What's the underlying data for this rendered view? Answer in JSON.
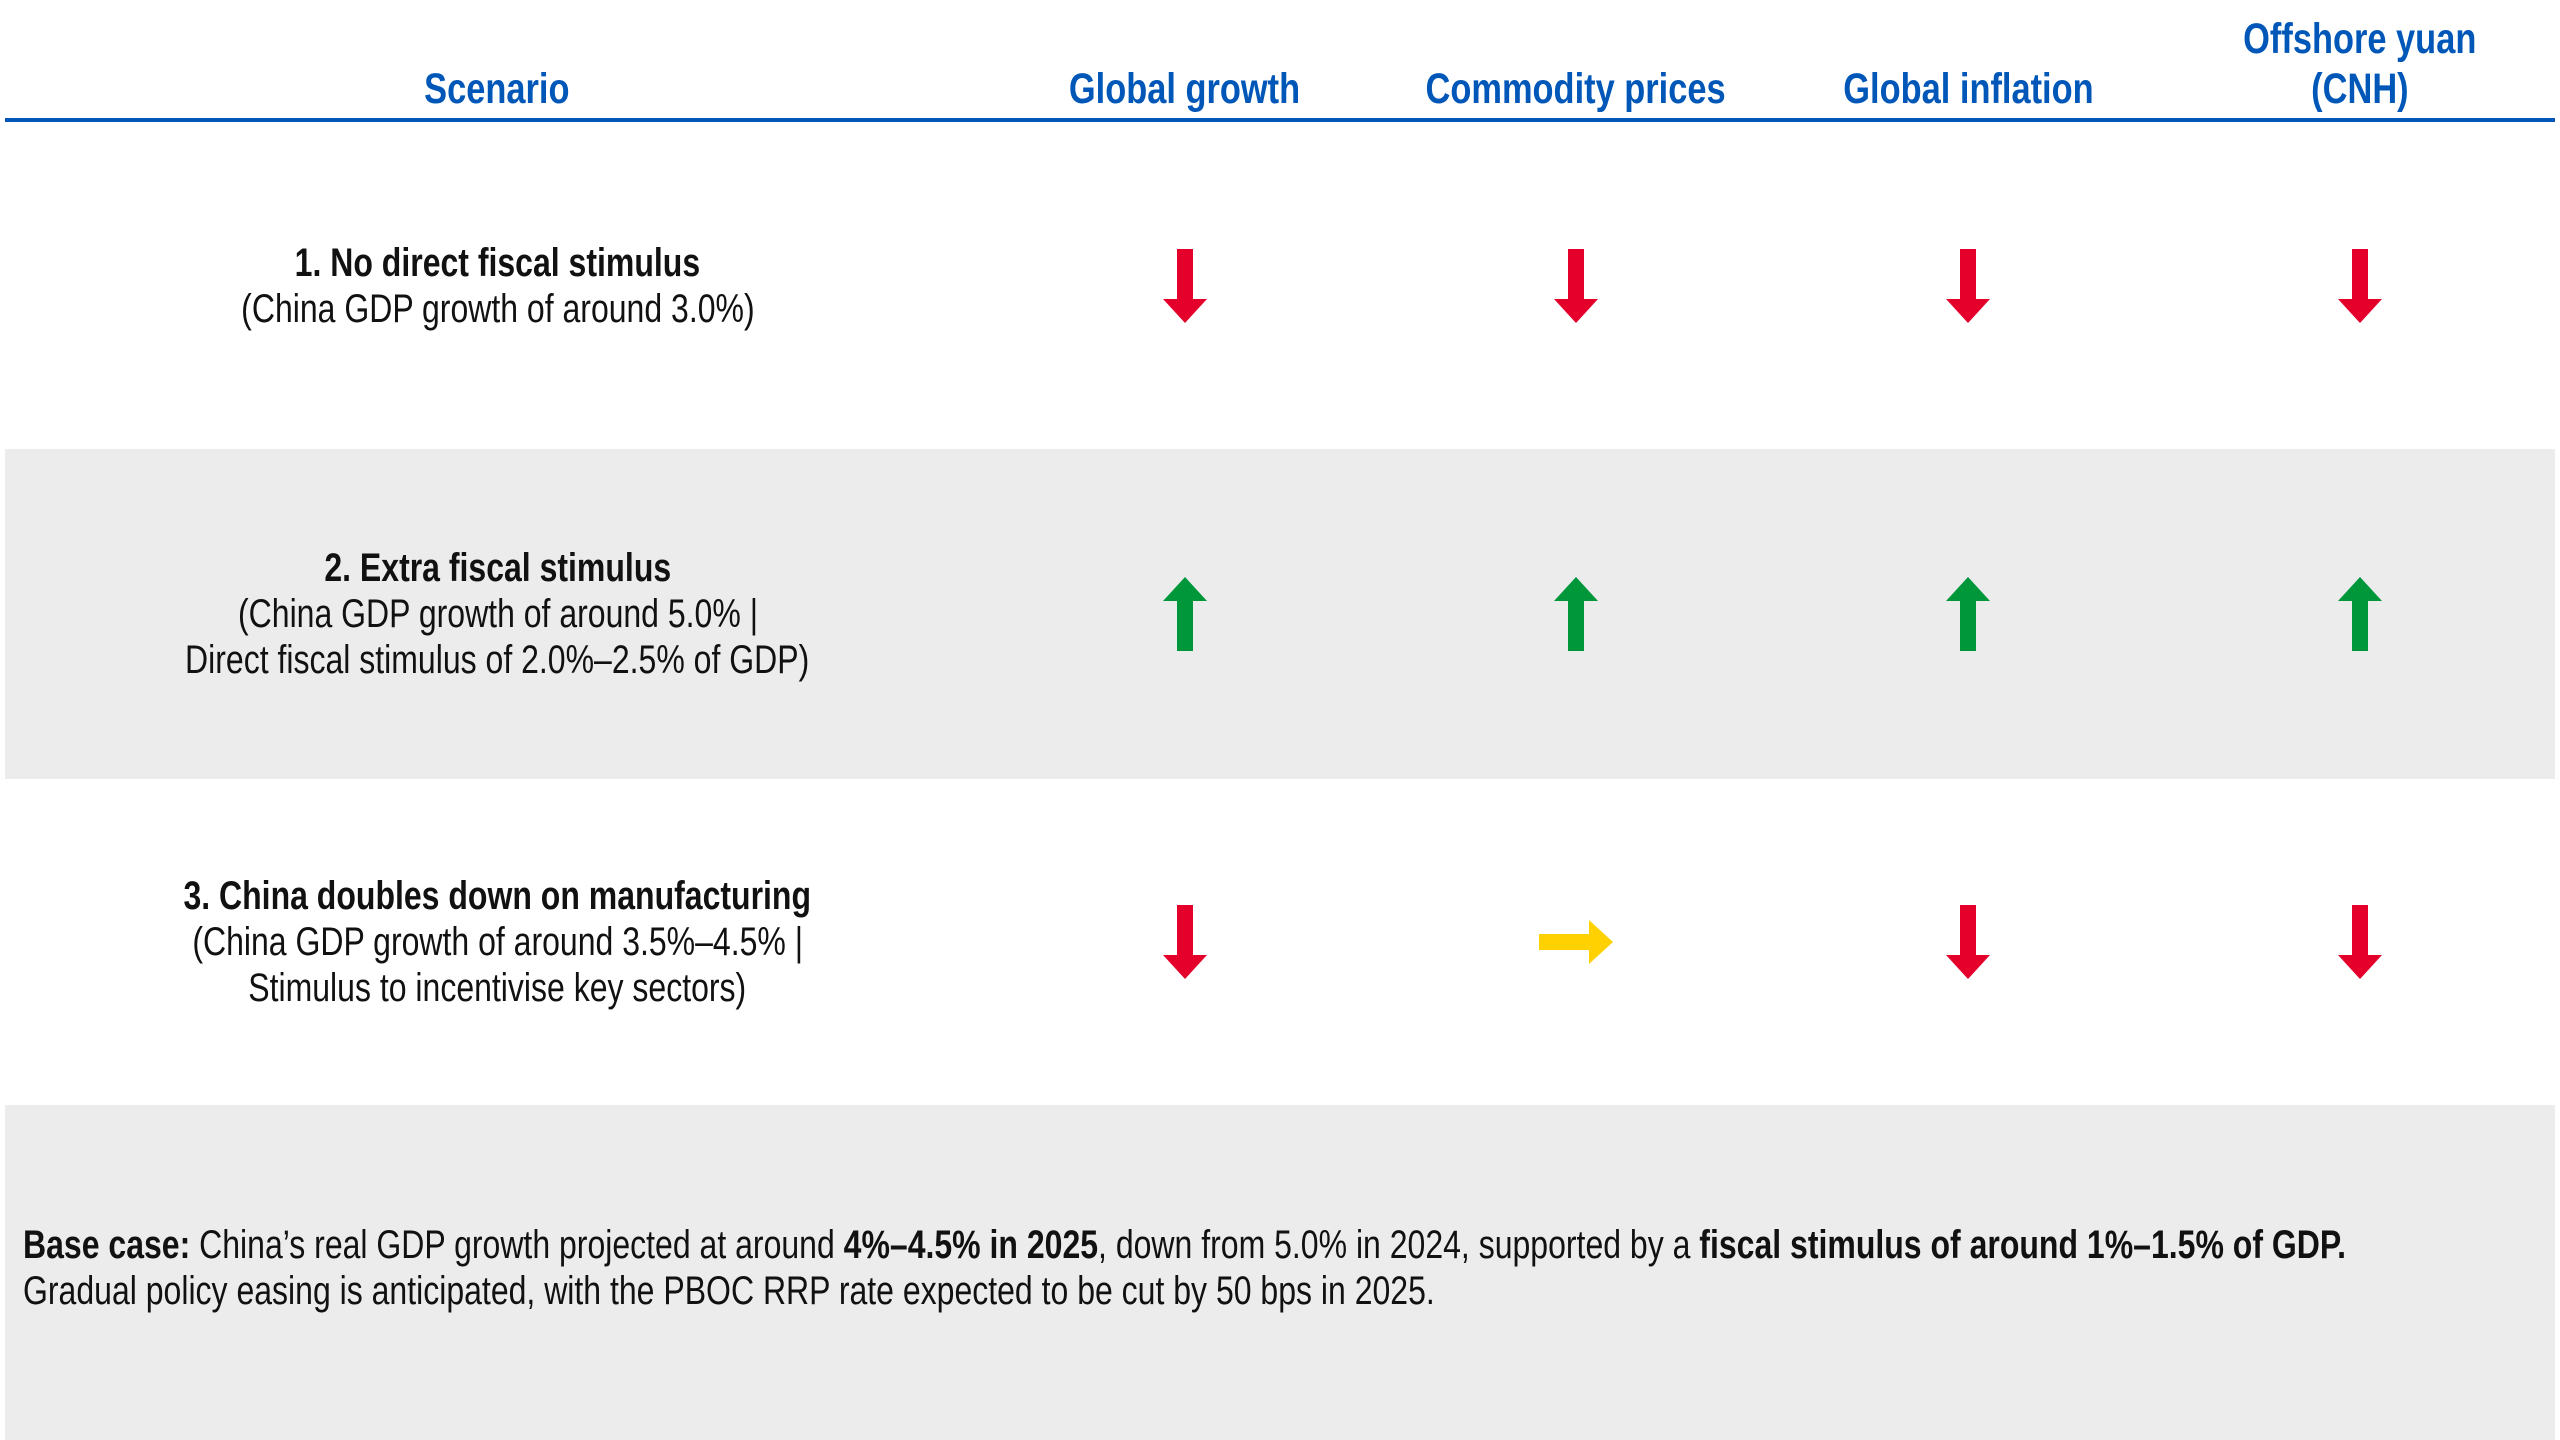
{
  "header": {
    "columns": [
      "Scenario",
      "Global growth",
      "Commodity prices",
      "Global inflation",
      "Offshore yuan (CNH)"
    ],
    "cnh_line1": "Offshore yuan",
    "cnh_line2": "(CNH)"
  },
  "colors": {
    "header_blue": "#0057b8",
    "down": "#e4002b",
    "up": "#00963a",
    "flat": "#ffd100",
    "row_gray": "#ececec"
  },
  "rows": [
    {
      "title": "1. No direct fiscal stimulus",
      "lines": [
        "(China GDP growth of around 3.0%)"
      ],
      "arrows": [
        "arrow-down-icon",
        "arrow-down-icon",
        "arrow-down-icon",
        "arrow-down-icon"
      ]
    },
    {
      "title": "2. Extra fiscal stimulus",
      "lines": [
        "(China GDP growth of around 5.0% |",
        "Direct fiscal stimulus of 2.0%–2.5% of GDP)"
      ],
      "arrows": [
        "arrow-up-icon",
        "arrow-up-icon",
        "arrow-up-icon",
        "arrow-up-icon"
      ]
    },
    {
      "title": "3. China doubles down on manufacturing",
      "lines": [
        "(China GDP growth of around 3.5%–4.5% |",
        "Stimulus to incentivise key sectors)"
      ],
      "arrows": [
        "arrow-down-icon",
        "arrow-right-icon",
        "arrow-down-icon",
        "arrow-down-icon"
      ]
    }
  ],
  "base_case": {
    "label": "Base case:",
    "t1": " China’s real GDP growth projected at around ",
    "b1": "4%–4.5% in 2025",
    "t2": ", down from 5.0% in 2024, supported by a ",
    "b2": "fiscal stimulus of around 1%–1.5% of GDP.",
    "line2": "Gradual policy easing is anticipated, with the PBOC RRP rate expected to be cut by 50 bps in 2025."
  }
}
